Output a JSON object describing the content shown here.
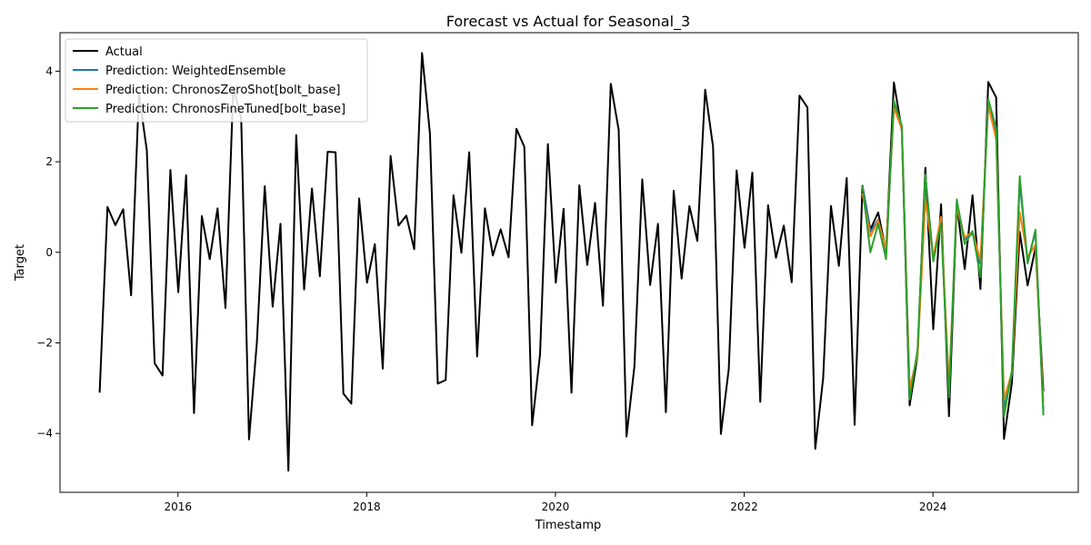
{
  "chart_data": {
    "type": "line",
    "title": "Forecast vs Actual for Seasonal_3",
    "xlabel": "Timestamp",
    "ylabel": "Target",
    "xlim": [
      2014.75,
      2025.54
    ],
    "ylim": [
      -5.3,
      4.85
    ],
    "x_ticks": [
      2016,
      2018,
      2020,
      2022,
      2024
    ],
    "y_ticks": [
      -4,
      -2,
      0,
      2,
      4
    ],
    "grid": false,
    "legend_position": "top-left",
    "x_start": 2015.17,
    "x_step": 0.08333,
    "series": [
      {
        "name": "Actual",
        "color": "#000000",
        "offset": 0,
        "values": [
          -3.1,
          1.0,
          0.6,
          0.95,
          -0.95,
          3.5,
          2.25,
          -2.45,
          -2.72,
          1.82,
          -0.88,
          1.7,
          -3.55,
          0.8,
          -0.15,
          0.97,
          -1.23,
          3.65,
          2.95,
          -4.13,
          -1.97,
          1.46,
          -1.2,
          0.63,
          -4.82,
          2.59,
          -0.82,
          1.41,
          -0.53,
          2.22,
          2.21,
          -3.12,
          -3.34,
          1.19,
          -0.67,
          0.18,
          -2.57,
          2.13,
          0.59,
          0.81,
          0.07,
          4.4,
          2.62,
          -2.9,
          -2.82,
          1.26,
          -0.01,
          2.21,
          -2.3,
          0.97,
          -0.07,
          0.51,
          -0.11,
          2.73,
          2.33,
          -3.82,
          -2.25,
          2.39,
          -0.67,
          0.96,
          -3.1,
          1.48,
          -0.28,
          1.09,
          -1.18,
          3.72,
          2.7,
          -4.07,
          -2.52,
          1.61,
          -0.72,
          0.63,
          -3.53,
          1.36,
          -0.58,
          1.02,
          0.25,
          3.59,
          2.33,
          -4.01,
          -2.57,
          1.81,
          0.1,
          1.76,
          -3.3,
          1.04,
          -0.12,
          0.59,
          -0.66,
          3.46,
          3.2,
          -4.34,
          -2.78,
          1.02,
          -0.3,
          1.64,
          -3.81,
          1.47,
          0.5,
          0.88,
          0.02,
          3.75,
          2.7,
          -3.38,
          -2.29,
          1.87,
          -1.7,
          1.06,
          -3.62,
          1.07,
          -0.37,
          1.26,
          -0.81,
          3.76,
          3.42,
          -4.12,
          -2.88,
          0.45,
          -0.73,
          0.1,
          -3.07
        ]
      },
      {
        "name": "Prediction: WeightedEnsemble",
        "color": "#1f77b4",
        "offset": 97,
        "values": [
          1.47,
          0.45,
          0.72,
          0.03,
          3.25,
          2.75,
          -3.1,
          -2.25,
          1.7,
          -0.15,
          0.72,
          -3.1,
          1.1,
          0.28,
          0.42,
          -0.25,
          3.3,
          2.6,
          -3.45,
          -2.7,
          1.55,
          -0.2,
          0.45,
          -3.5
        ]
      },
      {
        "name": "Prediction: ChronosZeroShot[bolt_base]",
        "color": "#ff7f0e",
        "offset": 97,
        "values": [
          1.3,
          0.35,
          0.7,
          0.07,
          3.2,
          2.72,
          -3.0,
          -2.28,
          1.16,
          -0.1,
          0.78,
          -2.95,
          0.98,
          0.33,
          0.45,
          -0.17,
          3.25,
          2.5,
          -3.25,
          -2.65,
          0.89,
          -0.1,
          0.16,
          -3.3
        ]
      },
      {
        "name": "Prediction: ChronosFineTuned[bolt_base]",
        "color": "#2ca02c",
        "offset": 97,
        "values": [
          1.47,
          0.0,
          0.63,
          -0.15,
          3.35,
          2.8,
          -3.25,
          -2.15,
          1.72,
          -0.2,
          0.65,
          -3.2,
          1.17,
          0.18,
          0.47,
          -0.55,
          3.38,
          2.75,
          -3.63,
          -2.6,
          1.68,
          -0.25,
          0.5,
          -3.6
        ]
      }
    ]
  }
}
